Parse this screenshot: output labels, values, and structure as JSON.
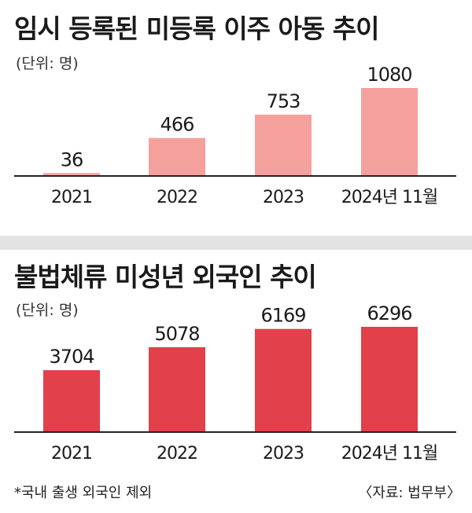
{
  "colors": {
    "chart1_bar": "#f4a19d",
    "chart2_bar": "#e2404b",
    "axis": "#222222"
  },
  "footnote": "*국내 출생 외국인 제외",
  "source": "〈자료: 법무부〉",
  "chart_data": [
    {
      "type": "bar",
      "title": "임시 등록된 미등록 이주 아동 추이",
      "unit": "(단위: 명)",
      "categories": [
        "2021",
        "2022",
        "2023",
        "2024년 11월"
      ],
      "values": [
        36,
        466,
        753,
        1080
      ],
      "data_labels": [
        "36",
        "466",
        "753",
        "1080"
      ],
      "ylim": [
        0,
        1080
      ]
    },
    {
      "type": "bar",
      "title": "불법체류 미성년 외국인 추이",
      "unit": "(단위: 명)",
      "categories": [
        "2021",
        "2022",
        "2023",
        "2024년 11월"
      ],
      "values": [
        3704,
        5078,
        6169,
        6296
      ],
      "data_labels": [
        "3704",
        "5078",
        "6169",
        "6296"
      ],
      "ylim": [
        0,
        6296
      ]
    }
  ]
}
